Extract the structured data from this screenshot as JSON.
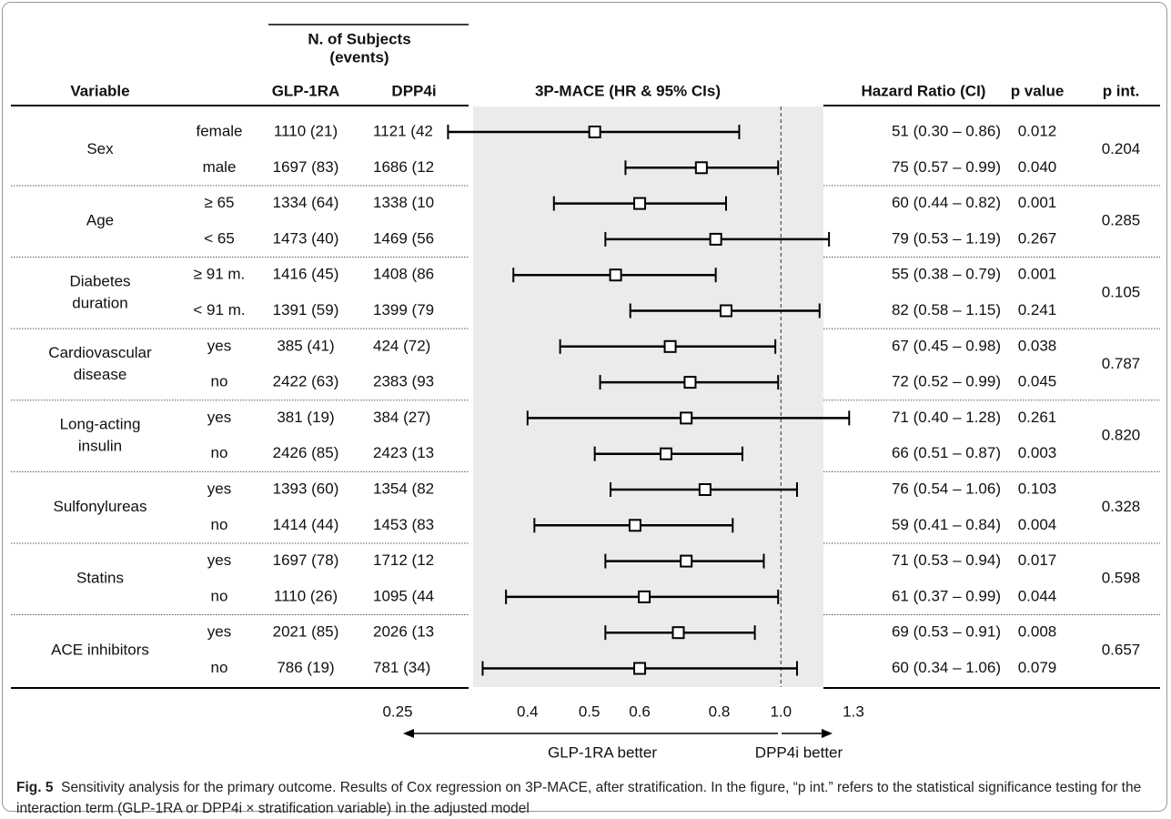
{
  "chart_data": {
    "type": "forest",
    "header_subjects": [
      "N. of Subjects",
      "(events)"
    ],
    "columns": {
      "variable": "Variable",
      "glp1ra": "GLP-1RA",
      "dpp4i": "DPP4i",
      "plot": "3P-MACE (HR & 95% CIs)",
      "hr": "Hazard Ratio (CI)",
      "p": "p value",
      "p_int": "p int."
    },
    "groups": [
      {
        "variable": [
          "Sex"
        ],
        "p_int": "0.204",
        "rows": [
          {
            "subgroup": "female",
            "glp1ra": "1110 (21)",
            "dpp4i": "1121 (42",
            "hr": 0.51,
            "lo": 0.3,
            "hi": 0.86,
            "hr_label": "51 (0.30 – 0.86)",
            "p": "0.012"
          },
          {
            "subgroup": "male",
            "glp1ra": "1697 (83)",
            "dpp4i": "1686 (12",
            "hr": 0.75,
            "lo": 0.57,
            "hi": 0.99,
            "hr_label": "75 (0.57 – 0.99)",
            "p": "0.040"
          }
        ]
      },
      {
        "variable": [
          "Age"
        ],
        "p_int": "0.285",
        "rows": [
          {
            "subgroup": "≥ 65",
            "glp1ra": "1334 (64)",
            "dpp4i": "1338 (10",
            "hr": 0.6,
            "lo": 0.44,
            "hi": 0.82,
            "hr_label": "60 (0.44 – 0.82)",
            "p": "0.001"
          },
          {
            "subgroup": "< 65",
            "glp1ra": "1473 (40)",
            "dpp4i": "1469 (56",
            "hr": 0.79,
            "lo": 0.53,
            "hi": 1.19,
            "hr_label": "79 (0.53 – 1.19)",
            "p": "0.267"
          }
        ]
      },
      {
        "variable": [
          "Diabetes",
          "duration"
        ],
        "p_int": "0.105",
        "rows": [
          {
            "subgroup": "≥ 91 m.",
            "glp1ra": "1416 (45)",
            "dpp4i": "1408 (86",
            "hr": 0.55,
            "lo": 0.38,
            "hi": 0.79,
            "hr_label": "55 (0.38 – 0.79)",
            "p": "0.001"
          },
          {
            "subgroup": "< 91 m.",
            "glp1ra": "1391 (59)",
            "dpp4i": "1399 (79",
            "hr": 0.82,
            "lo": 0.58,
            "hi": 1.15,
            "hr_label": "82 (0.58 – 1.15)",
            "p": "0.241"
          }
        ]
      },
      {
        "variable": [
          "Cardiovascular",
          "disease"
        ],
        "p_int": "0.787",
        "rows": [
          {
            "subgroup": "yes",
            "glp1ra": "385 (41)",
            "dpp4i": "424 (72)",
            "hr": 0.67,
            "lo": 0.45,
            "hi": 0.98,
            "hr_label": "67 (0.45 – 0.98)",
            "p": "0.038"
          },
          {
            "subgroup": "no",
            "glp1ra": "2422 (63)",
            "dpp4i": "2383 (93",
            "hr": 0.72,
            "lo": 0.52,
            "hi": 0.99,
            "hr_label": "72 (0.52 – 0.99)",
            "p": "0.045"
          }
        ]
      },
      {
        "variable": [
          "Long-acting",
          "insulin"
        ],
        "p_int": "0.820",
        "rows": [
          {
            "subgroup": "yes",
            "glp1ra": "381 (19)",
            "dpp4i": "384 (27)",
            "hr": 0.71,
            "lo": 0.4,
            "hi": 1.28,
            "hr_label": "71 (0.40 – 1.28)",
            "p": "0.261"
          },
          {
            "subgroup": "no",
            "glp1ra": "2426 (85)",
            "dpp4i": "2423 (13",
            "hr": 0.66,
            "lo": 0.51,
            "hi": 0.87,
            "hr_label": "66 (0.51 – 0.87)",
            "p": "0.003"
          }
        ]
      },
      {
        "variable": [
          "Sulfonylureas"
        ],
        "p_int": "0.328",
        "rows": [
          {
            "subgroup": "yes",
            "glp1ra": "1393 (60)",
            "dpp4i": "1354 (82",
            "hr": 0.76,
            "lo": 0.54,
            "hi": 1.06,
            "hr_label": "76 (0.54 – 1.06)",
            "p": "0.103"
          },
          {
            "subgroup": "no",
            "glp1ra": "1414 (44)",
            "dpp4i": "1453 (83",
            "hr": 0.59,
            "lo": 0.41,
            "hi": 0.84,
            "hr_label": "59 (0.41 – 0.84)",
            "p": "0.004"
          }
        ]
      },
      {
        "variable": [
          "Statins"
        ],
        "p_int": "0.598",
        "rows": [
          {
            "subgroup": "yes",
            "glp1ra": "1697 (78)",
            "dpp4i": "1712 (12",
            "hr": 0.71,
            "lo": 0.53,
            "hi": 0.94,
            "hr_label": "71 (0.53 – 0.94)",
            "p": "0.017"
          },
          {
            "subgroup": "no",
            "glp1ra": "1110 (26)",
            "dpp4i": "1095 (44",
            "hr": 0.61,
            "lo": 0.37,
            "hi": 0.99,
            "hr_label": "61 (0.37 – 0.99)",
            "p": "0.044"
          }
        ]
      },
      {
        "variable": [
          "ACE inhibitors"
        ],
        "p_int": "0.657",
        "rows": [
          {
            "subgroup": "yes",
            "glp1ra": "2021 (85)",
            "dpp4i": "2026 (13",
            "hr": 0.69,
            "lo": 0.53,
            "hi": 0.91,
            "hr_label": "69 (0.53 – 0.91)",
            "p": "0.008"
          },
          {
            "subgroup": "no",
            "glp1ra": "786 (19)",
            "dpp4i": "781 (34)",
            "hr": 0.6,
            "lo": 0.34,
            "hi": 1.06,
            "hr_label": "60 (0.34 – 1.06)",
            "p": "0.079"
          }
        ]
      }
    ],
    "log_x": true,
    "xlim": [
      0.25,
      1.3
    ],
    "xticks": [
      0.25,
      0.4,
      0.5,
      0.6,
      0.8,
      {
        "value": 1,
        "label": "1.0"
      },
      1.3
    ],
    "reference_line": 1,
    "favors_left": "GLP-1RA better",
    "favors_right": "DPP4i better",
    "caption_label": "Fig. 5",
    "caption": "Sensitivity analysis for the primary outcome. Results of Cox regression on 3P-MACE, after stratification. In the figure, “p int.” refers to the statistical significance testing for the interaction term (GLP-1RA or DPP4i × stratification variable) in the adjusted model"
  }
}
